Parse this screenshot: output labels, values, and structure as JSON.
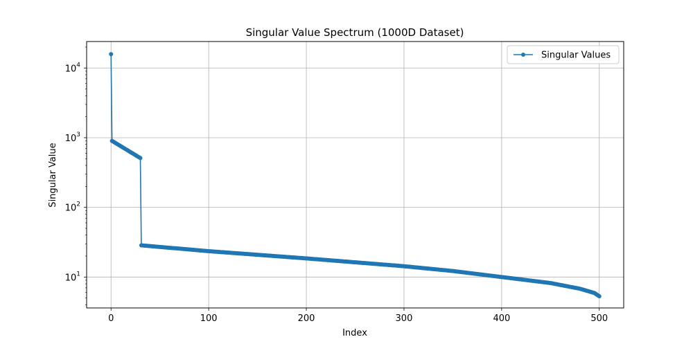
{
  "chart_data": {
    "type": "line",
    "title": "Singular Value Spectrum (1000D Dataset)",
    "xlabel": "Index",
    "ylabel": "Singular Value",
    "yscale": "log",
    "xlim": [
      -25,
      525
    ],
    "ylim": [
      3.6,
      24000
    ],
    "xticks": [
      0,
      100,
      200,
      300,
      400,
      500
    ],
    "xtick_labels": [
      "0",
      "100",
      "200",
      "300",
      "400",
      "500"
    ],
    "yticks": [
      10,
      100,
      1000,
      10000
    ],
    "ytick_labels": [
      {
        "base": "10",
        "exp": "1"
      },
      {
        "base": "10",
        "exp": "2"
      },
      {
        "base": "10",
        "exp": "3"
      },
      {
        "base": "10",
        "exp": "4"
      }
    ],
    "grid": true,
    "legend_position": "upper right",
    "series": [
      {
        "name": "Singular Values",
        "color": "#1f77b4",
        "marker": "circle",
        "segments": [
          {
            "x": [
              0,
              0
            ],
            "y": [
              15800,
              15800
            ]
          },
          {
            "x": [
              1,
              30
            ],
            "y": [
              900,
              510
            ]
          },
          {
            "x": [
              31,
              100,
              200,
              300,
              350,
              400,
              450,
              480,
              495,
              500
            ],
            "y": [
              28.5,
              23.5,
              18.5,
              14.3,
              12.2,
              10.0,
              8.2,
              6.8,
              5.9,
              5.3
            ]
          }
        ],
        "sample_points": [
          {
            "x": 0,
            "y": 15800
          },
          {
            "x": 1,
            "y": 900
          },
          {
            "x": 5,
            "y": 800
          },
          {
            "x": 10,
            "y": 720
          },
          {
            "x": 20,
            "y": 630
          },
          {
            "x": 30,
            "y": 510
          },
          {
            "x": 31,
            "y": 28.5
          },
          {
            "x": 100,
            "y": 23.5
          },
          {
            "x": 200,
            "y": 18.5
          },
          {
            "x": 300,
            "y": 14.3
          },
          {
            "x": 400,
            "y": 10.0
          },
          {
            "x": 450,
            "y": 8.2
          },
          {
            "x": 500,
            "y": 5.3
          }
        ]
      }
    ]
  }
}
